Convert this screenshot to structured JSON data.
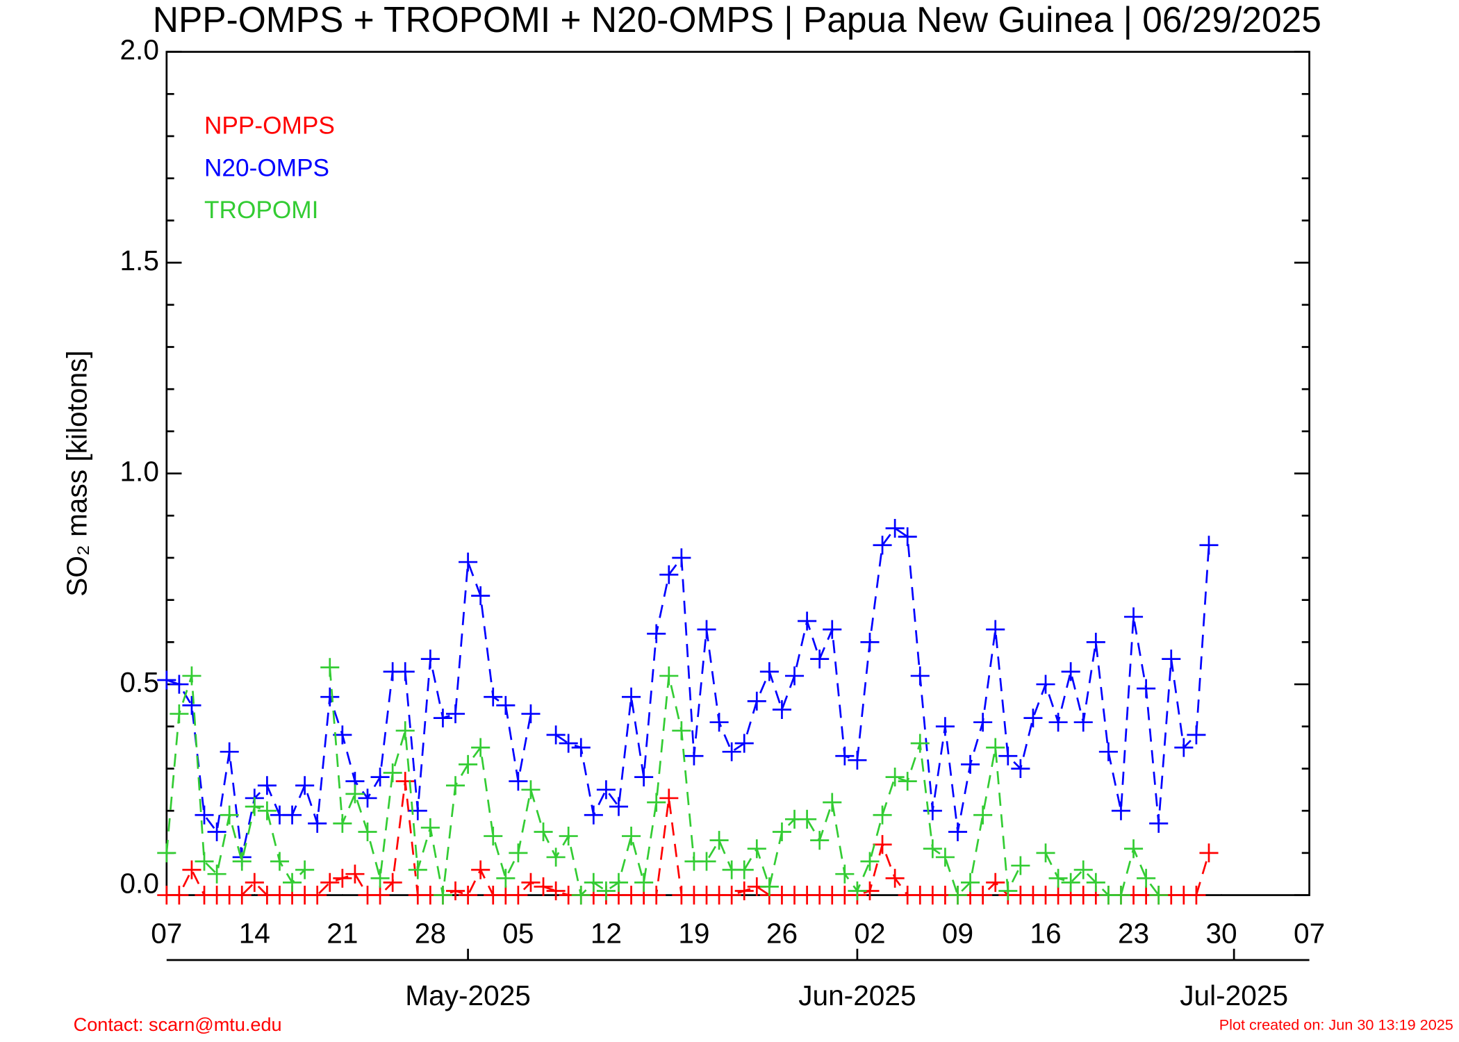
{
  "chart_data": {
    "type": "line",
    "title": "NPP-OMPS + TROPOMI + N20-OMPS | Papua New Guinea | 06/29/2025",
    "y_label": "SO₂ mass [kilotons]",
    "footer_left": "Contact: scarn@mtu.edu",
    "footer_right": "Plot created on: Jun 30 13:19 2025",
    "legend": "upper left",
    "xlim": [
      "2025-04-07",
      "2025-07-07"
    ],
    "xticks": [
      {
        "value": "2025-04-07",
        "label": "07"
      },
      {
        "value": "2025-04-14",
        "label": "14"
      },
      {
        "value": "2025-04-21",
        "label": "21"
      },
      {
        "value": "2025-04-28",
        "label": "28"
      },
      {
        "value": "2025-05-05",
        "label": "05"
      },
      {
        "value": "2025-05-12",
        "label": "12"
      },
      {
        "value": "2025-05-19",
        "label": "19"
      },
      {
        "value": "2025-05-26",
        "label": "26"
      },
      {
        "value": "2025-06-02",
        "label": "02"
      },
      {
        "value": "2025-06-09",
        "label": "09"
      },
      {
        "value": "2025-06-16",
        "label": "16"
      },
      {
        "value": "2025-06-23",
        "label": "23"
      },
      {
        "value": "2025-06-30",
        "label": "30"
      },
      {
        "value": "2025-07-07",
        "label": "07"
      }
    ],
    "month_ticks": [
      {
        "value": "2025-05-01",
        "label": "May-2025"
      },
      {
        "value": "2025-06-01",
        "label": "Jun-2025"
      },
      {
        "value": "2025-07-01",
        "label": "Jul-2025"
      }
    ],
    "ylim": [
      0,
      2
    ],
    "yticks": [
      {
        "value": 0,
        "label": "0.0"
      },
      0.5,
      {
        "value": 1,
        "label": "1.0"
      },
      1.5,
      {
        "value": 2,
        "label": "2.0"
      }
    ],
    "y_minor_ticks": [
      0.1,
      0.2,
      0.3,
      0.4,
      0.6,
      0.7,
      0.8,
      0.9,
      1.1,
      1.2,
      1.3,
      1.4,
      1.6,
      1.7,
      1.8,
      1.9
    ],
    "x": [
      "2025-04-07",
      "2025-04-08",
      "2025-04-09",
      "2025-04-10",
      "2025-04-11",
      "2025-04-12",
      "2025-04-13",
      "2025-04-14",
      "2025-04-15",
      "2025-04-16",
      "2025-04-17",
      "2025-04-18",
      "2025-04-19",
      "2025-04-20",
      "2025-04-21",
      "2025-04-22",
      "2025-04-23",
      "2025-04-24",
      "2025-04-25",
      "2025-04-26",
      "2025-04-27",
      "2025-04-28",
      "2025-04-29",
      "2025-04-30",
      "2025-05-01",
      "2025-05-02",
      "2025-05-03",
      "2025-05-04",
      "2025-05-05",
      "2025-05-06",
      "2025-05-07",
      "2025-05-08",
      "2025-05-09",
      "2025-05-10",
      "2025-05-11",
      "2025-05-12",
      "2025-05-13",
      "2025-05-14",
      "2025-05-15",
      "2025-05-16",
      "2025-05-17",
      "2025-05-18",
      "2025-05-19",
      "2025-05-20",
      "2025-05-21",
      "2025-05-22",
      "2025-05-23",
      "2025-05-24",
      "2025-05-25",
      "2025-05-26",
      "2025-05-27",
      "2025-05-28",
      "2025-05-29",
      "2025-05-30",
      "2025-05-31",
      "2025-06-01",
      "2025-06-02",
      "2025-06-03",
      "2025-06-04",
      "2025-06-05",
      "2025-06-06",
      "2025-06-07",
      "2025-06-08",
      "2025-06-09",
      "2025-06-10",
      "2025-06-11",
      "2025-06-12",
      "2025-06-13",
      "2025-06-14",
      "2025-06-15",
      "2025-06-16",
      "2025-06-17",
      "2025-06-18",
      "2025-06-19",
      "2025-06-20",
      "2025-06-21",
      "2025-06-22",
      "2025-06-23",
      "2025-06-24",
      "2025-06-25",
      "2025-06-26",
      "2025-06-27",
      "2025-06-28",
      "2025-06-29"
    ],
    "series": [
      {
        "name": "NPP-OMPS",
        "color": "#ff0000",
        "values": [
          0,
          0,
          0.06,
          0,
          0,
          0,
          0,
          0.03,
          0,
          0,
          0,
          0,
          0,
          0.03,
          0.04,
          0.05,
          0,
          0,
          0.03,
          0.27,
          0,
          0,
          0,
          0.01,
          0,
          0.06,
          0,
          0,
          0,
          0.03,
          0.02,
          0.01,
          0,
          0,
          0,
          0,
          0,
          0,
          0,
          0,
          0.23,
          0,
          0,
          0,
          0,
          0,
          0.01,
          0.02,
          0,
          0,
          0,
          0,
          0,
          0,
          0,
          0,
          0.01,
          0.12,
          0.04,
          0,
          0,
          0,
          0,
          0,
          0,
          0,
          0.03,
          0,
          0,
          0,
          0,
          0,
          0,
          0,
          0,
          0,
          0,
          0,
          0,
          0,
          0,
          0,
          0,
          0.1
        ]
      },
      {
        "name": "N20-OMPS",
        "color": "#0000ff",
        "values": [
          0.51,
          0.5,
          0.45,
          0.19,
          0.15,
          0.34,
          0.09,
          0.23,
          0.26,
          0.19,
          0.19,
          0.26,
          0.17,
          0.47,
          0.38,
          0.27,
          0.23,
          0.28,
          0.53,
          0.53,
          0.2,
          0.56,
          0.42,
          0.43,
          0.79,
          0.71,
          0.47,
          0.45,
          0.27,
          0.43,
          null,
          0.38,
          0.36,
          0.35,
          0.19,
          0.25,
          0.21,
          0.47,
          0.28,
          0.62,
          0.76,
          0.8,
          0.33,
          0.63,
          0.41,
          0.34,
          0.36,
          0.46,
          0.53,
          0.44,
          0.52,
          0.65,
          0.56,
          0.63,
          0.33,
          0.32,
          0.6,
          0.83,
          0.87,
          0.85,
          0.52,
          0.2,
          0.4,
          0.15,
          0.31,
          0.41,
          0.63,
          0.33,
          0.3,
          0.42,
          0.5,
          0.41,
          0.53,
          0.41,
          0.6,
          0.34,
          0.2,
          0.66,
          0.49,
          0.17,
          0.56,
          0.35,
          0.38,
          0.83
        ]
      },
      {
        "name": "TROPOMI",
        "color": "#33cc33",
        "values": [
          0.1,
          0.43,
          0.52,
          0.08,
          0.05,
          0.19,
          0.08,
          0.21,
          0.2,
          0.08,
          0.03,
          0.06,
          null,
          0.54,
          0.17,
          0.24,
          0.15,
          0.04,
          0.29,
          0.39,
          0.06,
          0.16,
          0,
          0.26,
          0.31,
          0.35,
          0.14,
          0.04,
          0.1,
          0.25,
          0.15,
          0.09,
          0.14,
          0,
          0.03,
          0.01,
          0.03,
          0.14,
          0.03,
          0.22,
          0.52,
          0.39,
          0.08,
          0.08,
          0.13,
          0.06,
          0.06,
          0.11,
          0.02,
          0.15,
          0.18,
          0.18,
          0.13,
          0.22,
          0.05,
          0.01,
          0.08,
          0.19,
          0.28,
          0.27,
          0.36,
          0.11,
          0.09,
          0,
          0.03,
          0.19,
          0.35,
          0.01,
          0.07,
          null,
          0.1,
          0.04,
          0.03,
          0.06,
          0.03,
          0,
          0,
          0.11,
          0.04,
          0,
          null,
          null,
          null,
          null
        ]
      }
    ]
  }
}
